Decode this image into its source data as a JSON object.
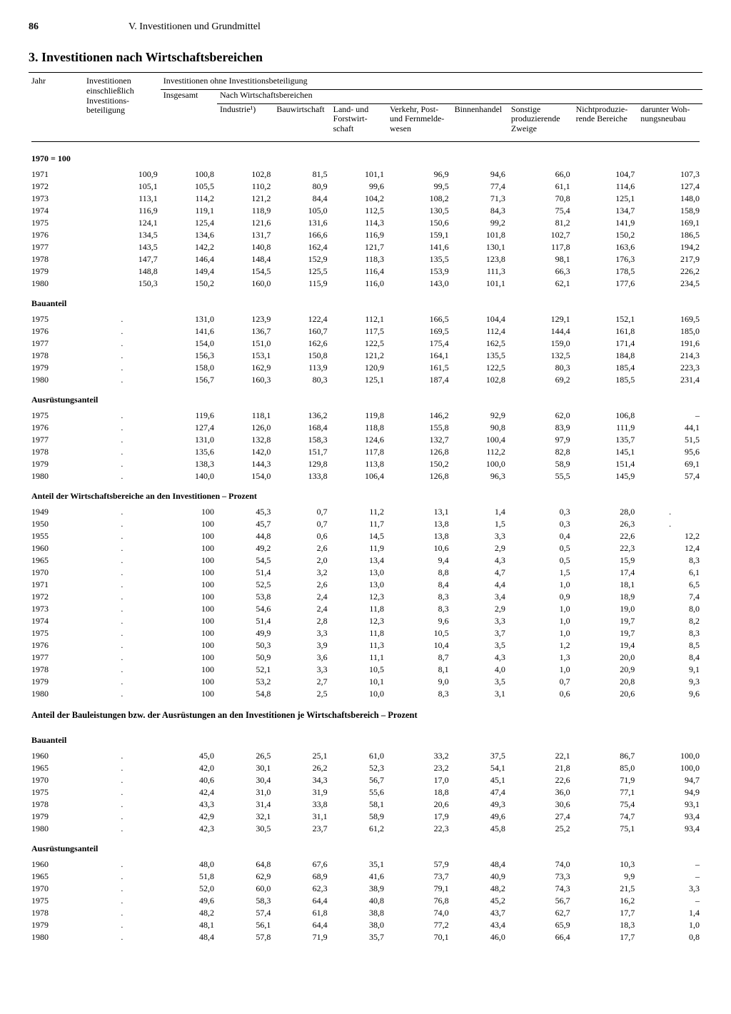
{
  "page_number": "86",
  "chapter": "V. Investitionen und Grundmittel",
  "section_title": "3. Investitionen nach Wirtschaftsbereichen",
  "headers": {
    "jahr": "Jahr",
    "inv_einschl": "Investitionen einschließlich Investitions­beteiligung",
    "inv_ohne": "Investitionen ohne Investitionsbeteiligung",
    "insgesamt": "Ins­gesamt",
    "nach_wb": "Nach Wirtschaftsbereichen",
    "industrie": "In­dustrie¹)",
    "bauwirt": "Bau­wirt­schaft",
    "landforst": "Land- und Forst­wirt­schaft",
    "verkehr": "Verkehr, Post- und Fern­melde­wesen",
    "binnen": "Binnen­handel",
    "sonst_prod": "Sonstige produzie­rende Zweige",
    "nicht_prod": "Nicht­produzie­rende Bereiche",
    "darunter": "darunter Woh­nungs­neubau"
  },
  "section_labels": {
    "index1970": "1970 = 100",
    "bauanteil": "Bauanteil",
    "ausruest": "Ausrüstungsanteil",
    "anteil_wb": "Anteil der Wirtschaftsbereiche an den Investitionen – Prozent",
    "anteil_bau_ausr": "Anteil der Bauleistungen bzw. der Ausrüstungen an den Investitionen je Wirtschaftsbereich – Prozent"
  },
  "placeholder_dot": ".",
  "dash": "–",
  "blocks": {
    "index1970": [
      [
        "1971",
        "100,9",
        "100,8",
        "102,8",
        "81,5",
        "101,1",
        "96,9",
        "94,6",
        "66,0",
        "104,7",
        "107,3"
      ],
      [
        "1972",
        "105,1",
        "105,5",
        "110,2",
        "80,9",
        "99,6",
        "99,5",
        "77,4",
        "61,1",
        "114,6",
        "127,4"
      ],
      [
        "1973",
        "113,1",
        "114,2",
        "121,2",
        "84,4",
        "104,2",
        "108,2",
        "71,3",
        "70,8",
        "125,1",
        "148,0"
      ],
      [
        "1974",
        "116,9",
        "119,1",
        "118,9",
        "105,0",
        "112,5",
        "130,5",
        "84,3",
        "75,4",
        "134,7",
        "158,9"
      ],
      [
        "1975",
        "124,1",
        "125,4",
        "121,6",
        "131,6",
        "114,3",
        "150,6",
        "99,2",
        "81,2",
        "141,9",
        "169,1"
      ],
      [
        "1976",
        "134,5",
        "134,6",
        "131,7",
        "166,6",
        "116,9",
        "159,1",
        "101,8",
        "102,7",
        "150,2",
        "186,5"
      ],
      [
        "1977",
        "143,5",
        "142,2",
        "140,8",
        "162,4",
        "121,7",
        "141,6",
        "130,1",
        "117,8",
        "163,6",
        "194,2"
      ],
      [
        "1978",
        "147,7",
        "146,4",
        "148,4",
        "152,9",
        "118,3",
        "135,5",
        "123,8",
        "98,1",
        "176,3",
        "217,9"
      ],
      [
        "1979",
        "148,8",
        "149,4",
        "154,5",
        "125,5",
        "116,4",
        "153,9",
        "111,3",
        "66,3",
        "178,5",
        "226,2"
      ],
      [
        "1980",
        "150,3",
        "150,2",
        "160,0",
        "115,9",
        "116,0",
        "143,0",
        "101,1",
        "62,1",
        "177,6",
        "234,5"
      ]
    ],
    "bauanteil1": [
      [
        "1975",
        ".",
        "131,0",
        "123,9",
        "122,4",
        "112,1",
        "166,5",
        "104,4",
        "129,1",
        "152,1",
        "169,5"
      ],
      [
        "1976",
        ".",
        "141,6",
        "136,7",
        "160,7",
        "117,5",
        "169,5",
        "112,4",
        "144,4",
        "161,8",
        "185,0"
      ],
      [
        "1977",
        ".",
        "154,0",
        "151,0",
        "162,6",
        "122,5",
        "175,4",
        "162,5",
        "159,0",
        "171,4",
        "191,6"
      ],
      [
        "1978",
        ".",
        "156,3",
        "153,1",
        "150,8",
        "121,2",
        "164,1",
        "135,5",
        "132,5",
        "184,8",
        "214,3"
      ],
      [
        "1979",
        ".",
        "158,0",
        "162,9",
        "113,9",
        "120,9",
        "161,5",
        "122,5",
        "80,3",
        "185,4",
        "223,3"
      ],
      [
        "1980",
        ".",
        "156,7",
        "160,3",
        "80,3",
        "125,1",
        "187,4",
        "102,8",
        "69,2",
        "185,5",
        "231,4"
      ]
    ],
    "ausruest1": [
      [
        "1975",
        ".",
        "119,6",
        "118,1",
        "136,2",
        "119,8",
        "146,2",
        "92,9",
        "62,0",
        "106,8",
        "–"
      ],
      [
        "1976",
        ".",
        "127,4",
        "126,0",
        "168,4",
        "118,8",
        "155,8",
        "90,8",
        "83,9",
        "111,9",
        "44,1"
      ],
      [
        "1977",
        ".",
        "131,0",
        "132,8",
        "158,3",
        "124,6",
        "132,7",
        "100,4",
        "97,9",
        "135,7",
        "51,5"
      ],
      [
        "1978",
        ".",
        "135,6",
        "142,0",
        "151,7",
        "117,8",
        "126,8",
        "112,2",
        "82,8",
        "145,1",
        "95,6"
      ],
      [
        "1979",
        ".",
        "138,3",
        "144,3",
        "129,8",
        "113,8",
        "150,2",
        "100,0",
        "58,9",
        "151,4",
        "69,1"
      ],
      [
        "1980",
        ".",
        "140,0",
        "154,0",
        "133,8",
        "106,4",
        "126,8",
        "96,3",
        "55,5",
        "145,9",
        "57,4"
      ]
    ],
    "anteil_wb": [
      [
        "1949",
        ".",
        "100",
        "45,3",
        "0,7",
        "11,2",
        "13,1",
        "1,4",
        "0,3",
        "28,0",
        "."
      ],
      [
        "1950",
        ".",
        "100",
        "45,7",
        "0,7",
        "11,7",
        "13,8",
        "1,5",
        "0,3",
        "26,3",
        "."
      ],
      [
        "1955",
        ".",
        "100",
        "44,8",
        "0,6",
        "14,5",
        "13,8",
        "3,3",
        "0,4",
        "22,6",
        "12,2"
      ],
      [
        "1960",
        ".",
        "100",
        "49,2",
        "2,6",
        "11,9",
        "10,6",
        "2,9",
        "0,5",
        "22,3",
        "12,4"
      ],
      [
        "1965",
        ".",
        "100",
        "54,5",
        "2,0",
        "13,4",
        "9,4",
        "4,3",
        "0,5",
        "15,9",
        "8,3"
      ],
      [
        "1970",
        ".",
        "100",
        "51,4",
        "3,2",
        "13,0",
        "8,8",
        "4,7",
        "1,5",
        "17,4",
        "6,1"
      ],
      [
        "1971",
        ".",
        "100",
        "52,5",
        "2,6",
        "13,0",
        "8,4",
        "4,4",
        "1,0",
        "18,1",
        "6,5"
      ],
      [
        "1972",
        ".",
        "100",
        "53,8",
        "2,4",
        "12,3",
        "8,3",
        "3,4",
        "0,9",
        "18,9",
        "7,4"
      ],
      [
        "1973",
        ".",
        "100",
        "54,6",
        "2,4",
        "11,8",
        "8,3",
        "2,9",
        "1,0",
        "19,0",
        "8,0"
      ],
      [
        "1974",
        ".",
        "100",
        "51,4",
        "2,8",
        "12,3",
        "9,6",
        "3,3",
        "1,0",
        "19,7",
        "8,2"
      ],
      [
        "1975",
        ".",
        "100",
        "49,9",
        "3,3",
        "11,8",
        "10,5",
        "3,7",
        "1,0",
        "19,7",
        "8,3"
      ],
      [
        "1976",
        ".",
        "100",
        "50,3",
        "3,9",
        "11,3",
        "10,4",
        "3,5",
        "1,2",
        "19,4",
        "8,5"
      ],
      [
        "1977",
        ".",
        "100",
        "50,9",
        "3,6",
        "11,1",
        "8,7",
        "4,3",
        "1,3",
        "20,0",
        "8,4"
      ],
      [
        "1978",
        ".",
        "100",
        "52,1",
        "3,3",
        "10,5",
        "8,1",
        "4,0",
        "1,0",
        "20,9",
        "9,1"
      ],
      [
        "1979",
        ".",
        "100",
        "53,2",
        "2,7",
        "10,1",
        "9,0",
        "3,5",
        "0,7",
        "20,8",
        "9,3"
      ],
      [
        "1980",
        ".",
        "100",
        "54,8",
        "2,5",
        "10,0",
        "8,3",
        "3,1",
        "0,6",
        "20,6",
        "9,6"
      ]
    ],
    "bauanteil2": [
      [
        "1960",
        ".",
        "45,0",
        "26,5",
        "25,1",
        "61,0",
        "33,2",
        "37,5",
        "22,1",
        "86,7",
        "100,0"
      ],
      [
        "1965",
        ".",
        "42,0",
        "30,1",
        "26,2",
        "52,3",
        "23,2",
        "54,1",
        "21,8",
        "85,0",
        "100,0"
      ],
      [
        "1970",
        ".",
        "40,6",
        "30,4",
        "34,3",
        "56,7",
        "17,0",
        "45,1",
        "22,6",
        "71,9",
        "94,7"
      ],
      [
        "1975",
        ".",
        "42,4",
        "31,0",
        "31,9",
        "55,6",
        "18,8",
        "47,4",
        "36,0",
        "77,1",
        "94,9"
      ],
      [
        "1978",
        ".",
        "43,3",
        "31,4",
        "33,8",
        "58,1",
        "20,6",
        "49,3",
        "30,6",
        "75,4",
        "93,1"
      ],
      [
        "1979",
        ".",
        "42,9",
        "32,1",
        "31,1",
        "58,9",
        "17,9",
        "49,6",
        "27,4",
        "74,7",
        "93,4"
      ],
      [
        "1980",
        ".",
        "42,3",
        "30,5",
        "23,7",
        "61,2",
        "22,3",
        "45,8",
        "25,2",
        "75,1",
        "93,4"
      ]
    ],
    "ausruest2": [
      [
        "1960",
        ".",
        "48,0",
        "64,8",
        "67,6",
        "35,1",
        "57,9",
        "48,4",
        "74,0",
        "10,3",
        "–"
      ],
      [
        "1965",
        ".",
        "51,8",
        "62,9",
        "68,9",
        "41,6",
        "73,7",
        "40,9",
        "73,3",
        "9,9",
        "–"
      ],
      [
        "1970",
        ".",
        "52,0",
        "60,0",
        "62,3",
        "38,9",
        "79,1",
        "48,2",
        "74,3",
        "21,5",
        "3,3"
      ],
      [
        "1975",
        ".",
        "49,6",
        "58,3",
        "64,4",
        "40,8",
        "76,8",
        "45,2",
        "56,7",
        "16,2",
        "–"
      ],
      [
        "1978",
        ".",
        "48,2",
        "57,4",
        "61,8",
        "38,8",
        "74,0",
        "43,7",
        "62,7",
        "17,7",
        "1,4"
      ],
      [
        "1979",
        ".",
        "48,1",
        "56,1",
        "64,4",
        "38,0",
        "77,2",
        "43,4",
        "65,9",
        "18,3",
        "1,0"
      ],
      [
        "1980",
        ".",
        "48,4",
        "57,8",
        "71,9",
        "35,7",
        "70,1",
        "46,0",
        "66,4",
        "17,7",
        "0,8"
      ]
    ]
  }
}
